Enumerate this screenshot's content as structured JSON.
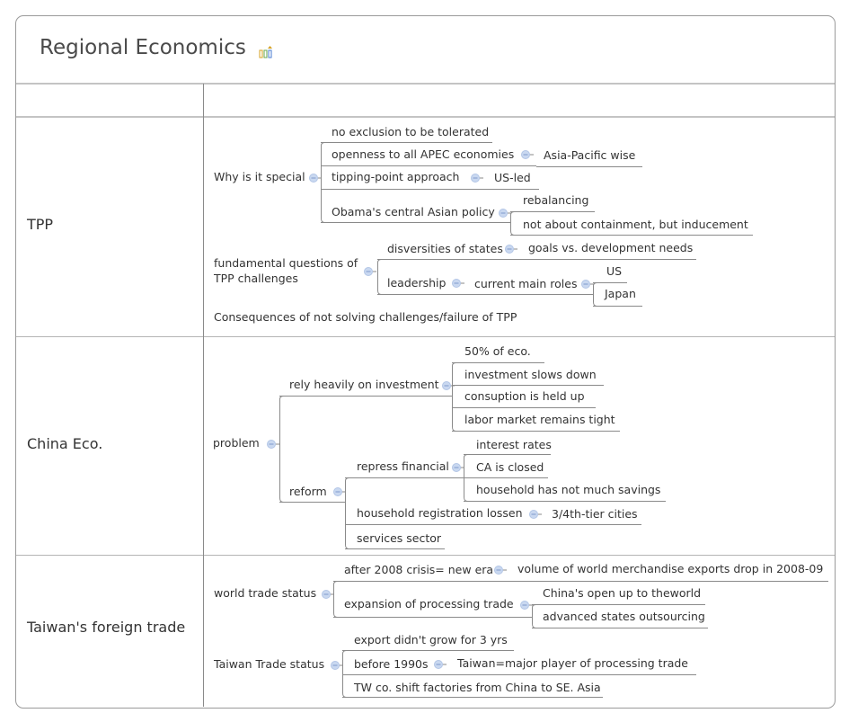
{
  "title": "Regional Economics",
  "title_icon": "chart-bars-icon",
  "colors": {
    "line": "#8a8a8a",
    "collapse_circle": "#c9d8f0",
    "text": "#333333"
  },
  "rows": {
    "tpp": {
      "label": "TPP",
      "why": "Why is it special",
      "no_exclusion": "no exclusion to be tolerated",
      "openness": "openness to all APEC economies",
      "asia_pacific": "Asia-Pacific wise",
      "tipping": "tipping-point approach",
      "us_led": "US-led",
      "obama": "Obama's central Asian policy",
      "rebalancing": "rebalancing",
      "not_about": "not about containment, but inducement",
      "fundamental": "fundamental questions of\nTPP challenges",
      "diversities": "disversities of states",
      "goals": "goals vs. development needs",
      "leadership": "leadership",
      "current_roles": "current main roles",
      "us": "US",
      "japan": "Japan",
      "consequences": "Consequences of not solving challenges/failure of TPP"
    },
    "china": {
      "label": "China Eco.",
      "problem": "problem",
      "rely": "rely heavily on investment",
      "fifty": "50% of eco.",
      "inv_slows": "investment slows down",
      "consumption": "consuption is held up",
      "labor": "labor market remains tight",
      "reform": "reform",
      "repress": "repress financial",
      "interest": "interest rates",
      "ca_closed": "CA is closed",
      "household_savings": "household has not much savings",
      "household_reg": "household registration lossen",
      "tier_cities": "3/4th-tier cities",
      "services": "services sector"
    },
    "taiwan": {
      "label": "Taiwan's foreign trade",
      "world": "world trade status",
      "after2008": "after 2008 crisis= new era",
      "volume": "volume of world merchandise exports drop in 2008-09",
      "expansion": "expansion of processing trade",
      "china_open": "China's open up to theworld",
      "outsourcing": "advanced states outsourcing",
      "tw_status": "Taiwan Trade status",
      "export": "export didn't grow for 3 yrs",
      "before1990": "before 1990s",
      "major_player": "Taiwan=major player of processing trade",
      "shift": "TW co. shift factories from China to SE. Asia"
    }
  }
}
